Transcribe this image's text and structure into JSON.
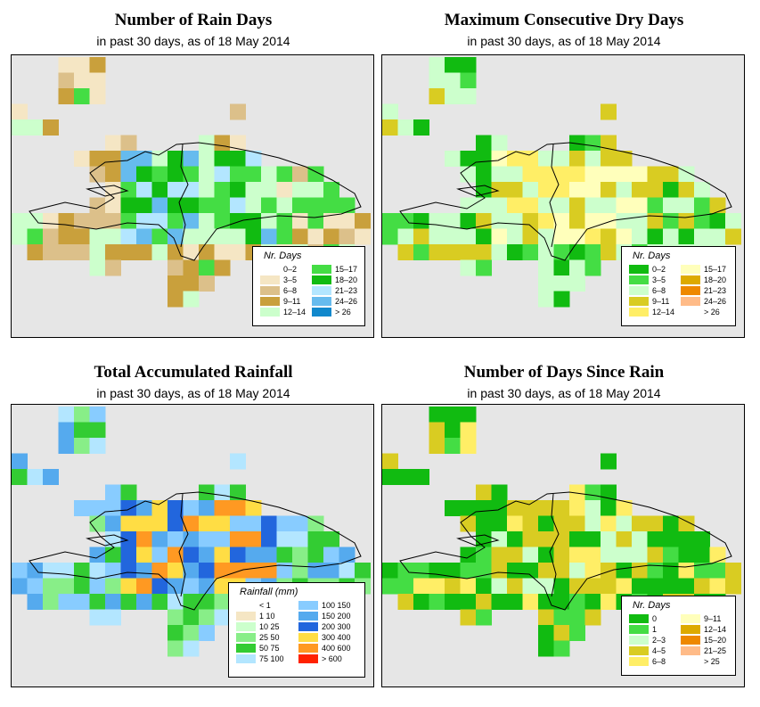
{
  "panels": [
    {
      "id": "rain_days",
      "title": "Number of Rain Days",
      "subtitle": "in past 30 days, as of  18 May 2014",
      "legend_title": "Nr. Days",
      "legend": [
        {
          "label": "0–2",
          "color": "#ffffff"
        },
        {
          "label": "3–5",
          "color": "#f5e6c4"
        },
        {
          "label": "6–8",
          "color": "#dcc08a"
        },
        {
          "label": "9–11",
          "color": "#c9a03c"
        },
        {
          "label": "12–14",
          "color": "#ccffcc"
        },
        {
          "label": "15–17",
          "color": "#44dd44"
        },
        {
          "label": "18–20",
          "color": "#11bb11"
        },
        {
          "label": "21–23",
          "color": "#b3e6ff"
        },
        {
          "label": "24–26",
          "color": "#66bbee"
        },
        {
          "label": "> 26",
          "color": "#1188cc"
        }
      ]
    },
    {
      "id": "max_dry",
      "title": "Maximum Consecutive Dry Days",
      "subtitle": "in past 30 days, as of  18 May 2014",
      "legend_title": "Nr. Days",
      "legend": [
        {
          "label": "0–2",
          "color": "#11bb11"
        },
        {
          "label": "3–5",
          "color": "#44dd44"
        },
        {
          "label": "6–8",
          "color": "#ccffcc"
        },
        {
          "label": "9–11",
          "color": "#d9cc22"
        },
        {
          "label": "12–14",
          "color": "#ffee66"
        },
        {
          "label": "15–17",
          "color": "#ffffbb"
        },
        {
          "label": "18–20",
          "color": "#ddaa00"
        },
        {
          "label": "21–23",
          "color": "#ee8800"
        },
        {
          "label": "24–26",
          "color": "#ffbb88"
        },
        {
          "label": "> 26",
          "color": "#ffffff"
        }
      ]
    },
    {
      "id": "total_rain",
      "title": "Total Accumulated Rainfall",
      "subtitle": "in past 30 days, as of  18 May 2014",
      "legend_title": "Rainfall (mm)",
      "legend": [
        {
          "label": "< 1",
          "color": "#ffffff"
        },
        {
          "label": "1    10",
          "color": "#f5e6c4"
        },
        {
          "label": "10    25",
          "color": "#ccffcc"
        },
        {
          "label": "25    50",
          "color": "#88ee88"
        },
        {
          "label": "50    75",
          "color": "#33cc33"
        },
        {
          "label": "75    100",
          "color": "#b3e6ff"
        },
        {
          "label": "100    150",
          "color": "#88ccff"
        },
        {
          "label": "150    200",
          "color": "#55aaee"
        },
        {
          "label": "200    300",
          "color": "#2266dd"
        },
        {
          "label": "300    400",
          "color": "#ffdd44"
        },
        {
          "label": "400    600",
          "color": "#ff9922"
        },
        {
          "label": "> 600",
          "color": "#ff2200"
        }
      ]
    },
    {
      "id": "days_since",
      "title": "Number of Days Since Rain",
      "subtitle": "in past 30 days, as of  18 May 2014",
      "legend_title": "Nr. Days",
      "legend": [
        {
          "label": "0",
          "color": "#11bb11"
        },
        {
          "label": "1",
          "color": "#44dd44"
        },
        {
          "label": "2–3",
          "color": "#ccffcc"
        },
        {
          "label": "4–5",
          "color": "#d9cc22"
        },
        {
          "label": "6–8",
          "color": "#ffee66"
        },
        {
          "label": "9–11",
          "color": "#ffffbb"
        },
        {
          "label": "12–14",
          "color": "#ddaa00"
        },
        {
          "label": "15–20",
          "color": "#ee8800"
        },
        {
          "label": "21–25",
          "color": "#ffbb88"
        },
        {
          "label": "> 25",
          "color": "#ffffff"
        }
      ]
    }
  ]
}
